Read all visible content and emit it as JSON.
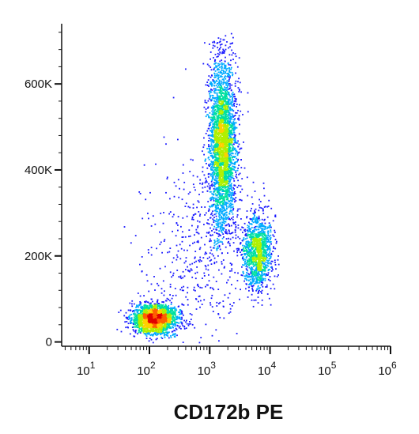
{
  "chart_data": {
    "type": "scatter",
    "subtype": "flow-cytometry-density-dot-plot",
    "xlabel": "CD172b PE",
    "ylabel": "",
    "x_scale": "log",
    "y_scale": "linear",
    "xlim": [
      3.5,
      1000000
    ],
    "ylim": [
      -10000,
      740000
    ],
    "grid": false,
    "legend": "none",
    "x_ticks": [
      {
        "value": 10,
        "base": "10",
        "exp": "1"
      },
      {
        "value": 100,
        "base": "10",
        "exp": "2"
      },
      {
        "value": 1000,
        "base": "10",
        "exp": "3"
      },
      {
        "value": 10000,
        "base": "10",
        "exp": "4"
      },
      {
        "value": 100000,
        "base": "10",
        "exp": "5"
      },
      {
        "value": 1000000,
        "base": "10",
        "exp": "6"
      }
    ],
    "y_ticks": [
      {
        "value": 0,
        "label": "0"
      },
      {
        "value": 200000,
        "label": "200K"
      },
      {
        "value": 400000,
        "label": "400K"
      },
      {
        "value": 600000,
        "label": "600K"
      }
    ],
    "colormap": [
      "#1a1aff",
      "#00aaff",
      "#00e0a0",
      "#b0f000",
      "#ffd000",
      "#ff6000",
      "#e00000"
    ],
    "populations": [
      {
        "x_center": 120,
        "x_log_sd": 0.18,
        "y_center": 55000,
        "y_sd": 17000,
        "count": 2200
      },
      {
        "x_center": 1600,
        "x_log_sd": 0.11,
        "y_center": 460000,
        "y_sd": 95000,
        "count": 3200
      },
      {
        "x_center": 6000,
        "x_log_sd": 0.12,
        "y_center": 210000,
        "y_sd": 42000,
        "count": 1300
      },
      {
        "x_center": 700,
        "x_log_sd": 0.45,
        "y_center": 220000,
        "y_sd": 110000,
        "count": 500
      }
    ]
  }
}
